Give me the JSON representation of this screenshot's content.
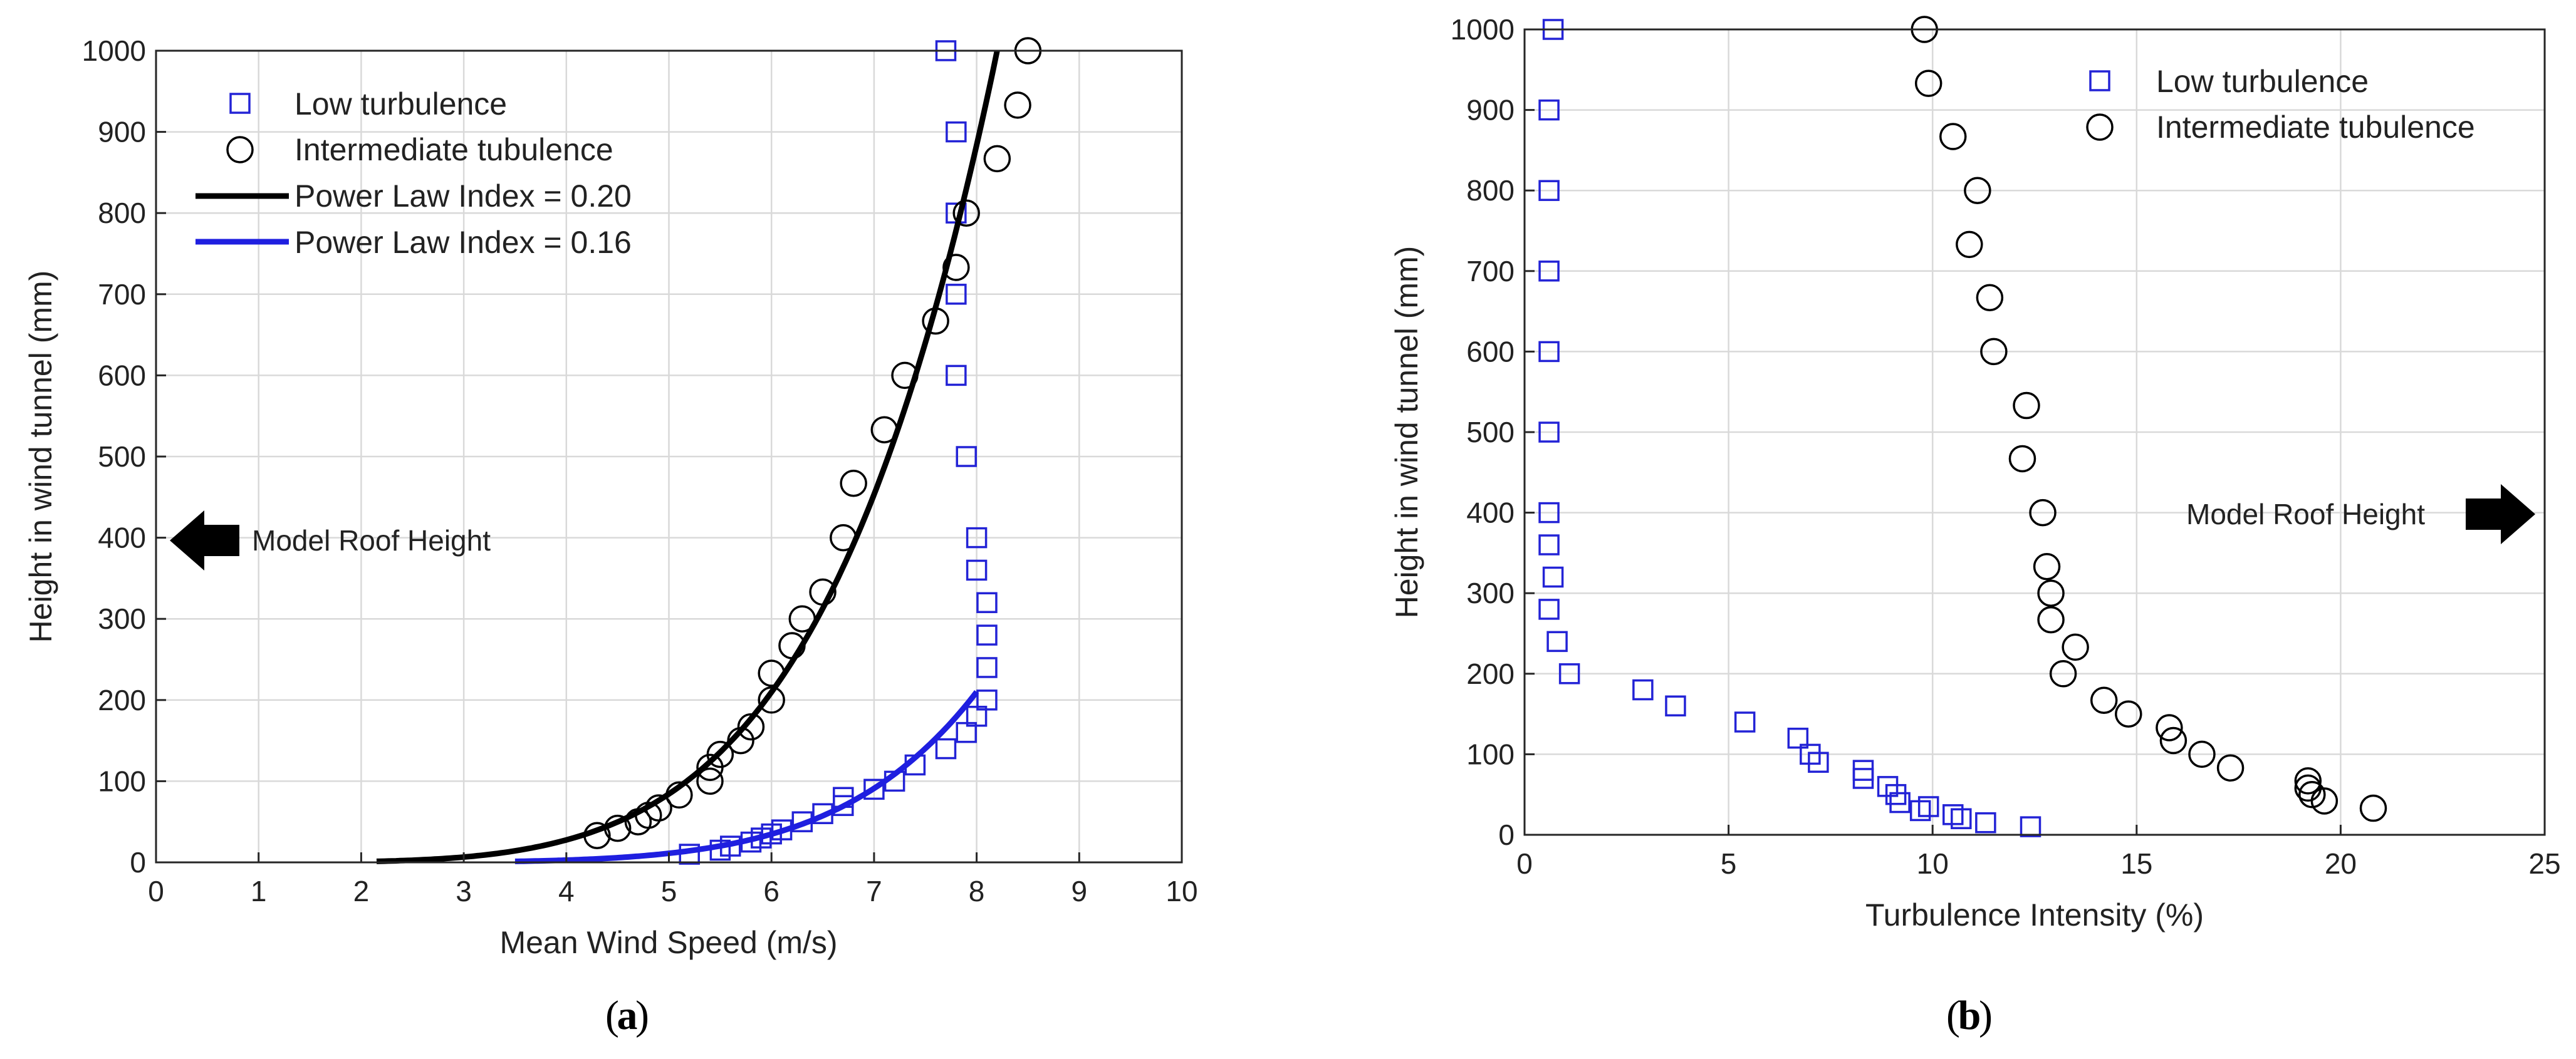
{
  "chart_data": [
    {
      "type": "scatter",
      "panel": "a",
      "caption_letter": "a",
      "xlabel": "Mean Wind Speed (m/s)",
      "ylabel": "Height in wind tunnel (mm)",
      "xlim": [
        0,
        10
      ],
      "ylim": [
        0,
        1000
      ],
      "xticks": [
        "0",
        "1",
        "2",
        "3",
        "4",
        "5",
        "6",
        "7",
        "8",
        "9",
        "10"
      ],
      "yticks": [
        "0",
        "100",
        "200",
        "300",
        "400",
        "500",
        "600",
        "700",
        "800",
        "900",
        "1000"
      ],
      "grid": true,
      "legend_position": "top-left",
      "annotation": {
        "text": "Model Roof Height",
        "y": 400,
        "arrow": "left"
      },
      "series": [
        {
          "name": "Low turbulence",
          "kind": "markers",
          "marker": "square",
          "color": "#2323d6",
          "points": [
            [
              7.7,
              1000
            ],
            [
              7.8,
              900
            ],
            [
              7.8,
              800
            ],
            [
              7.8,
              700
            ],
            [
              7.8,
              600
            ],
            [
              7.9,
              500
            ],
            [
              8.0,
              400
            ],
            [
              8.0,
              360
            ],
            [
              8.1,
              320
            ],
            [
              8.1,
              280
            ],
            [
              8.1,
              240
            ],
            [
              8.1,
              200
            ],
            [
              8.0,
              180
            ],
            [
              7.9,
              160
            ],
            [
              7.7,
              140
            ],
            [
              7.4,
              120
            ],
            [
              7.2,
              100
            ],
            [
              7.0,
              90
            ],
            [
              6.7,
              80
            ],
            [
              6.7,
              70
            ],
            [
              6.5,
              60
            ],
            [
              6.3,
              50
            ],
            [
              6.1,
              40
            ],
            [
              6.0,
              35
            ],
            [
              5.9,
              30
            ],
            [
              5.8,
              25
            ],
            [
              5.6,
              20
            ],
            [
              5.5,
              15
            ],
            [
              5.2,
              10
            ]
          ]
        },
        {
          "name": "Intermediate tubulence",
          "kind": "markers",
          "marker": "circle",
          "color": "#000000",
          "points": [
            [
              8.5,
              1000
            ],
            [
              8.4,
              933
            ],
            [
              8.2,
              867
            ],
            [
              7.9,
              800
            ],
            [
              7.8,
              733
            ],
            [
              7.6,
              667
            ],
            [
              7.3,
              600
            ],
            [
              7.1,
              533
            ],
            [
              6.8,
              467
            ],
            [
              6.7,
              400
            ],
            [
              6.5,
              333
            ],
            [
              6.3,
              300
            ],
            [
              6.2,
              267
            ],
            [
              6.0,
              233
            ],
            [
              6.0,
              200
            ],
            [
              5.8,
              167
            ],
            [
              5.7,
              150
            ],
            [
              5.5,
              133
            ],
            [
              5.4,
              117
            ],
            [
              5.4,
              100
            ],
            [
              5.1,
              83
            ],
            [
              4.9,
              67
            ],
            [
              4.8,
              58
            ],
            [
              4.7,
              50
            ],
            [
              4.5,
              42
            ],
            [
              4.3,
              33
            ]
          ]
        },
        {
          "name": "Power Law Index = 0.20",
          "kind": "line",
          "color": "#000000",
          "u_ref": 8.2,
          "z_ref": 1000,
          "alpha": 0.2,
          "u_start": 2.15
        },
        {
          "name": "Power Law Index = 0.16",
          "kind": "line",
          "color": "#1f1fe0",
          "u_ref": 8.0,
          "z_ref": 210,
          "alpha": 0.16,
          "u_start": 3.5
        }
      ]
    },
    {
      "type": "scatter",
      "panel": "b",
      "caption_letter": "b",
      "xlabel": "Turbulence Intensity (%)",
      "ylabel": "Height in wind tunnel (mm)",
      "xlim": [
        0,
        25
      ],
      "ylim": [
        0,
        1000
      ],
      "xticks": [
        "0",
        "5",
        "10",
        "15",
        "20",
        "25"
      ],
      "yticks": [
        "0",
        "100",
        "200",
        "300",
        "400",
        "500",
        "600",
        "700",
        "800",
        "900",
        "1000"
      ],
      "grid": true,
      "legend_position": "top-right",
      "annotation": {
        "text": "Model Roof Height",
        "y": 400,
        "arrow": "right"
      },
      "series": [
        {
          "name": "Low turbulence",
          "kind": "markers",
          "marker": "square",
          "color": "#2323d6",
          "points": [
            [
              0.7,
              1000
            ],
            [
              0.6,
              900
            ],
            [
              0.6,
              800
            ],
            [
              0.6,
              700
            ],
            [
              0.6,
              600
            ],
            [
              0.6,
              500
            ],
            [
              0.6,
              400
            ],
            [
              0.6,
              360
            ],
            [
              0.7,
              320
            ],
            [
              0.6,
              280
            ],
            [
              0.8,
              240
            ],
            [
              1.1,
              200
            ],
            [
              2.9,
              180
            ],
            [
              3.7,
              160
            ],
            [
              5.4,
              140
            ],
            [
              6.7,
              120
            ],
            [
              7.0,
              100
            ],
            [
              7.2,
              90
            ],
            [
              8.3,
              80
            ],
            [
              8.3,
              70
            ],
            [
              8.9,
              60
            ],
            [
              9.1,
              50
            ],
            [
              9.2,
              40
            ],
            [
              9.7,
              30
            ],
            [
              9.9,
              35
            ],
            [
              10.5,
              25
            ],
            [
              10.7,
              20
            ],
            [
              11.3,
              15
            ],
            [
              12.4,
              10
            ]
          ]
        },
        {
          "name": "Intermediate tubulence",
          "kind": "markers",
          "marker": "circle",
          "color": "#000000",
          "points": [
            [
              9.8,
              1000
            ],
            [
              9.9,
              933
            ],
            [
              10.5,
              867
            ],
            [
              11.1,
              800
            ],
            [
              10.9,
              733
            ],
            [
              11.4,
              667
            ],
            [
              11.5,
              600
            ],
            [
              12.3,
              533
            ],
            [
              12.2,
              467
            ],
            [
              12.7,
              400
            ],
            [
              12.8,
              333
            ],
            [
              12.9,
              300
            ],
            [
              12.9,
              267
            ],
            [
              13.5,
              233
            ],
            [
              13.2,
              200
            ],
            [
              14.2,
              167
            ],
            [
              14.8,
              150
            ],
            [
              15.8,
              133
            ],
            [
              15.9,
              117
            ],
            [
              16.6,
              100
            ],
            [
              17.3,
              83
            ],
            [
              19.2,
              67
            ],
            [
              19.2,
              58
            ],
            [
              19.3,
              50
            ],
            [
              19.6,
              42
            ],
            [
              20.8,
              33
            ]
          ]
        }
      ]
    }
  ]
}
